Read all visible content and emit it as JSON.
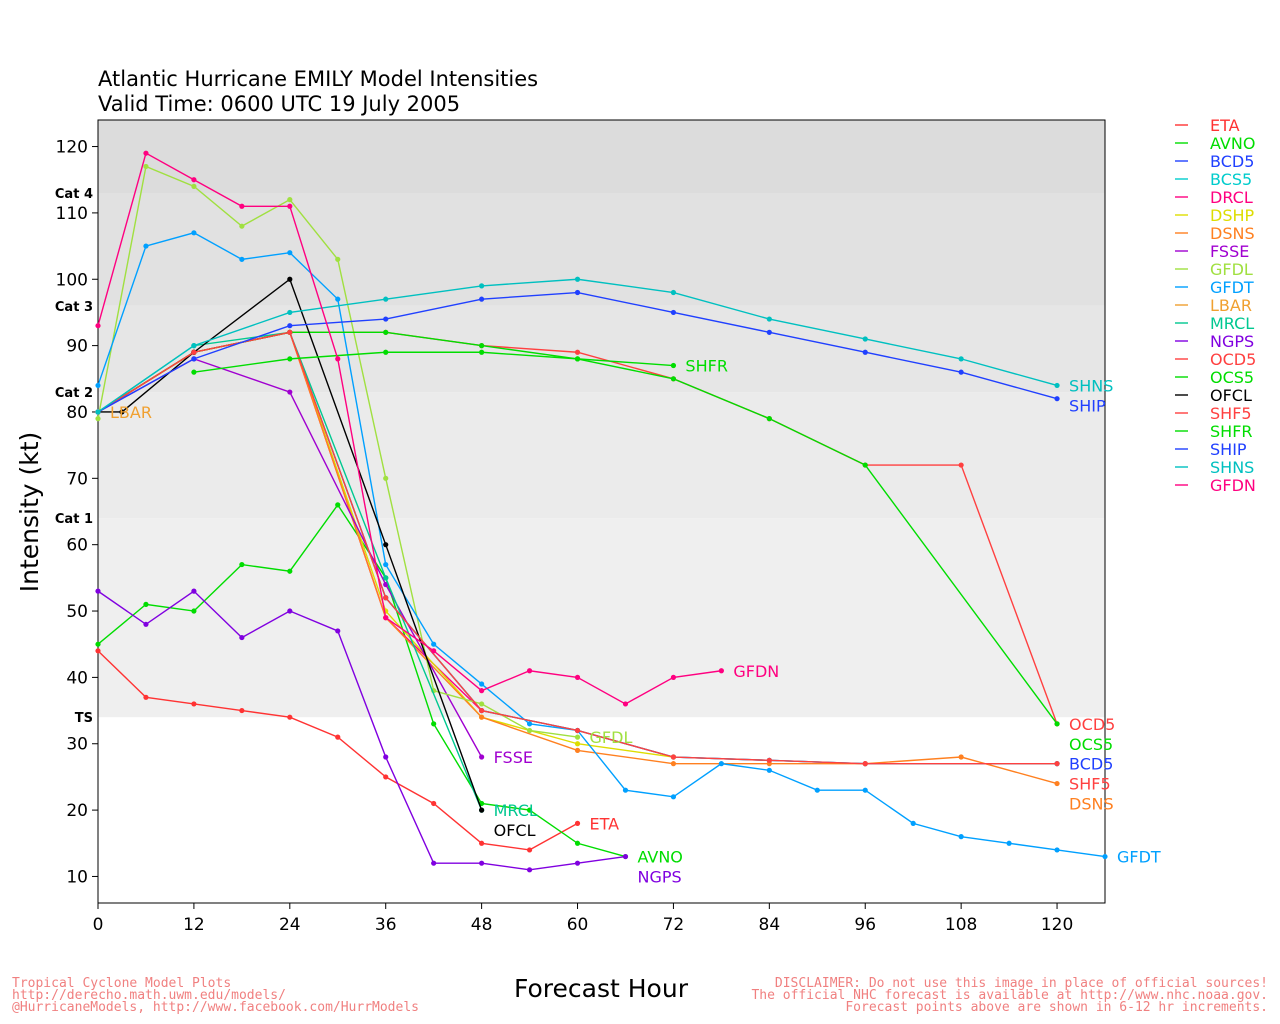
{
  "chart_data": {
    "type": "line",
    "title": "Atlantic Hurricane EMILY Model Intensities",
    "subtitle": "Valid Time: 0600 UTC 19 July 2005",
    "xlabel": "Forecast Hour",
    "ylabel": "Intensity (kt)",
    "xlim": [
      0,
      126
    ],
    "ylim": [
      6,
      124
    ],
    "xticks": [
      0,
      12,
      24,
      36,
      48,
      60,
      72,
      84,
      96,
      108,
      120
    ],
    "yticks": [
      10,
      20,
      30,
      40,
      50,
      60,
      70,
      80,
      90,
      100,
      110,
      120
    ],
    "categories": [
      {
        "label": "TS",
        "min": 34
      },
      {
        "label": "Cat 1",
        "min": 64
      },
      {
        "label": "Cat 2",
        "min": 83
      },
      {
        "label": "Cat 3",
        "min": 96
      },
      {
        "label": "Cat 4",
        "min": 113
      }
    ],
    "series": [
      {
        "name": "ETA",
        "color": "#ff3333",
        "x": [
          0,
          6,
          12,
          18,
          24,
          30,
          36,
          42,
          48,
          54,
          60
        ],
        "y": [
          44,
          37,
          36,
          35,
          34,
          31,
          25,
          21,
          15,
          14,
          18
        ],
        "end_label": "ETA"
      },
      {
        "name": "AVNO",
        "color": "#00dd00",
        "x": [
          0,
          6,
          12,
          18,
          24,
          30,
          36,
          42,
          48,
          54,
          60,
          66
        ],
        "y": [
          45,
          51,
          50,
          57,
          56,
          66,
          55,
          33,
          21,
          20,
          15,
          13
        ],
        "end_label": "AVNO"
      },
      {
        "name": "BCD5",
        "color": "#2040ff",
        "x": [
          0,
          12,
          24,
          36,
          48,
          60,
          72,
          84,
          96,
          120
        ],
        "y": [
          80,
          89,
          92,
          52,
          35,
          32,
          28,
          27.5,
          27,
          27
        ],
        "end_label": "BCD5"
      },
      {
        "name": "BCS5",
        "color": "#00cccc",
        "x": [
          0,
          12,
          24,
          36,
          48,
          60,
          72,
          84,
          96,
          120
        ],
        "y": [
          80,
          89,
          92,
          52,
          35,
          32,
          28,
          27.5,
          27,
          27
        ],
        "end_label": ""
      },
      {
        "name": "DRCL",
        "color": "#ff0080",
        "x": [
          0,
          12,
          24,
          36,
          48
        ],
        "y": [
          80,
          89,
          92,
          49,
          35
        ],
        "end_label": ""
      },
      {
        "name": "DSHP",
        "color": "#dddd00",
        "x": [
          0,
          12,
          24,
          36,
          48,
          60,
          72
        ],
        "y": [
          80,
          89,
          92,
          50,
          34,
          30,
          28
        ],
        "end_label": ""
      },
      {
        "name": "DSNS",
        "color": "#ff8020",
        "x": [
          0,
          12,
          24,
          36,
          48,
          60,
          72,
          84,
          96,
          108,
          120
        ],
        "y": [
          80,
          89,
          92,
          49,
          34,
          29,
          27,
          27,
          27,
          28,
          24
        ],
        "end_label": "DSNS"
      },
      {
        "name": "FSSE",
        "color": "#a000d0",
        "x": [
          0,
          12,
          24,
          36,
          48
        ],
        "y": [
          80,
          88,
          83,
          54,
          28
        ],
        "end_label": "FSSE"
      },
      {
        "name": "GFDL",
        "color": "#a0e040",
        "x": [
          0,
          6,
          12,
          18,
          24,
          30,
          36,
          42,
          48,
          54,
          60
        ],
        "y": [
          79,
          117,
          114,
          108,
          112,
          103,
          70,
          38,
          36,
          32,
          31
        ],
        "end_label": "GFDL"
      },
      {
        "name": "GFDT",
        "color": "#00a0ff",
        "x": [
          0,
          6,
          12,
          18,
          24,
          30,
          36,
          42,
          48,
          54,
          60,
          66,
          72,
          78,
          84,
          90,
          96,
          102,
          108,
          114,
          120,
          126
        ],
        "y": [
          84,
          105,
          107,
          103,
          104,
          97,
          57,
          45,
          39,
          33,
          32,
          23,
          22,
          27,
          26,
          23,
          23,
          18,
          16,
          15,
          14,
          13
        ],
        "end_label": "GFDT"
      },
      {
        "name": "LBAR",
        "color": "#f0a030",
        "x": [
          0
        ],
        "y": [
          80
        ],
        "end_label": "LBAR"
      },
      {
        "name": "MRCL",
        "color": "#00c890",
        "x": [
          0,
          12,
          24,
          36,
          48
        ],
        "y": [
          80,
          90,
          92,
          55,
          20
        ],
        "end_label": "MRCL"
      },
      {
        "name": "NGPS",
        "color": "#8000e0",
        "x": [
          0,
          6,
          12,
          18,
          24,
          30,
          36,
          42,
          48,
          54,
          60,
          66
        ],
        "y": [
          53,
          48,
          53,
          46,
          50,
          47,
          28,
          12,
          12,
          11,
          12,
          13
        ],
        "end_label": "NGPS"
      },
      {
        "name": "OCD5",
        "color": "#ff4040",
        "x": [
          0,
          12,
          24,
          36,
          48,
          60,
          72,
          84,
          96,
          108,
          120
        ],
        "y": [
          80,
          89,
          92,
          92,
          90,
          89,
          85,
          79,
          72,
          72,
          33
        ],
        "end_label": "OCD5"
      },
      {
        "name": "OCS5",
        "color": "#00dd00",
        "x": [
          0,
          12,
          24,
          36,
          48,
          60,
          72,
          84,
          96,
          120
        ],
        "y": [
          80,
          89,
          92,
          92,
          90,
          88,
          85,
          79,
          72,
          33
        ],
        "end_label": "OCS5"
      },
      {
        "name": "OFCL",
        "color": "#000000",
        "x": [
          0,
          3,
          12,
          24,
          36,
          48
        ],
        "y": [
          80,
          80,
          89,
          100,
          60,
          20
        ],
        "end_label": "OFCL"
      },
      {
        "name": "SHF5",
        "color": "#ff4040",
        "x": [
          0,
          12,
          24,
          36,
          48,
          60,
          72,
          84,
          96,
          120
        ],
        "y": [
          80,
          89,
          92,
          52,
          35,
          32,
          28,
          27.5,
          27,
          27
        ],
        "end_label": "SHF5"
      },
      {
        "name": "SHFR",
        "color": "#00dd00",
        "x": [
          12,
          24,
          36,
          48,
          60,
          72
        ],
        "y": [
          86,
          88,
          89,
          89,
          88,
          87
        ],
        "end_label": "SHFR"
      },
      {
        "name": "SHIP",
        "color": "#2040ff",
        "x": [
          0,
          12,
          24,
          36,
          48,
          60,
          72,
          84,
          96,
          108,
          120
        ],
        "y": [
          80,
          88,
          93,
          94,
          97,
          98,
          95,
          92,
          89,
          86,
          82
        ],
        "end_label": "SHIP"
      },
      {
        "name": "SHNS",
        "color": "#00c0c0",
        "x": [
          0,
          12,
          24,
          36,
          48,
          60,
          72,
          84,
          96,
          108,
          120
        ],
        "y": [
          80,
          90,
          95,
          97,
          99,
          100,
          98,
          94,
          91,
          88,
          84
        ],
        "end_label": "SHNS"
      },
      {
        "name": "GFDN",
        "color": "#ff0080",
        "x": [
          0,
          6,
          12,
          18,
          24,
          30,
          36,
          42,
          48,
          54,
          60,
          66,
          72,
          78
        ],
        "y": [
          93,
          119,
          115,
          111,
          111,
          88,
          49,
          44,
          38,
          41,
          40,
          36,
          40,
          41
        ],
        "end_label": "GFDN"
      }
    ]
  },
  "footer": {
    "left": [
      "Tropical Cyclone Model Plots",
      "http://derecho.math.uwm.edu/models/",
      "@HurricaneModels, http://www.facebook.com/HurrModels"
    ],
    "right": [
      "DISCLAIMER: Do not use this image in place of official sources!",
      "The official NHC forecast is available at http://www.nhc.noaa.gov.",
      "Forecast points above are shown in 6-12 hr increments."
    ]
  }
}
